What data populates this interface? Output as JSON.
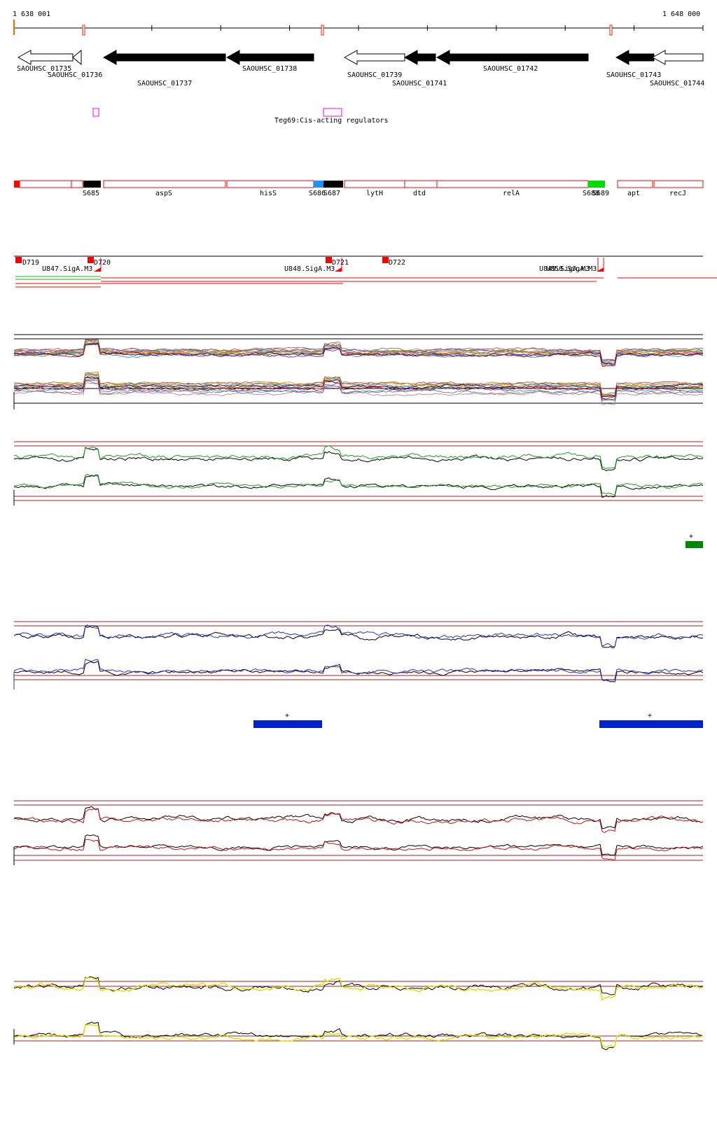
{
  "coordinates": {
    "start_label": "1 638 001",
    "end_label": "1 648 000"
  },
  "genes": [
    {
      "id": "SAOUHSC_01735",
      "strand": "+",
      "filled": false
    },
    {
      "id": "SAOUHSC_01736",
      "strand": "-",
      "filled": false
    },
    {
      "id": "SAOUHSC_01737",
      "strand": "-",
      "filled": true
    },
    {
      "id": "SAOUHSC_01738",
      "strand": "-",
      "filled": true
    },
    {
      "id": "SAOUHSC_01739",
      "strand": "+",
      "filled": false
    },
    {
      "id": "SAOUHSC_01741",
      "strand": "-",
      "filled": true
    },
    {
      "id": "SAOUHSC_01742",
      "strand": "-",
      "filled": true
    },
    {
      "id": "SAOUHSC_01743",
      "strand": "-",
      "filled": true
    },
    {
      "id": "SAOUHSC_01744",
      "strand": "+",
      "filled": false
    }
  ],
  "regulators": {
    "label": "Teg69:Cis-acting regulators"
  },
  "segments": [
    "S685",
    "aspS",
    "hisS",
    "S686",
    "S687",
    "lytH",
    "dtd",
    "relA",
    "S688",
    "S689",
    "apt",
    "recJ"
  ],
  "segment_colors": {
    "S685": "#000000",
    "S686": "#1e90ff",
    "S687": "#000000",
    "S689": "#00dd00"
  },
  "promoters": {
    "down": [
      "D719",
      "D720",
      "D721",
      "D722"
    ],
    "up": [
      "U847.SigA.M3",
      "U848.SigA.M3",
      "U849.SigA.M3",
      "U850.SigA.M3"
    ]
  },
  "tracks": [
    {
      "name": "all-conditions",
      "color": "multi"
    },
    {
      "name": "condition-green",
      "color": "#1a9e1a"
    },
    {
      "name": "condition-blue",
      "color": "#2233cc"
    },
    {
      "name": "condition-red",
      "color": "#cc1111"
    },
    {
      "name": "condition-yellow",
      "color": "#e8e800"
    }
  ],
  "strand_markers": [
    {
      "track": "green",
      "label": "+"
    },
    {
      "track": "blue",
      "label": "+"
    },
    {
      "track": "blue",
      "label": "+"
    }
  ],
  "colors": {
    "accent": "#ff0000",
    "gene_fill": "#000000",
    "regulator": "#ff00ff",
    "green_bar": "#008800",
    "blue_bar": "#0022cc"
  }
}
